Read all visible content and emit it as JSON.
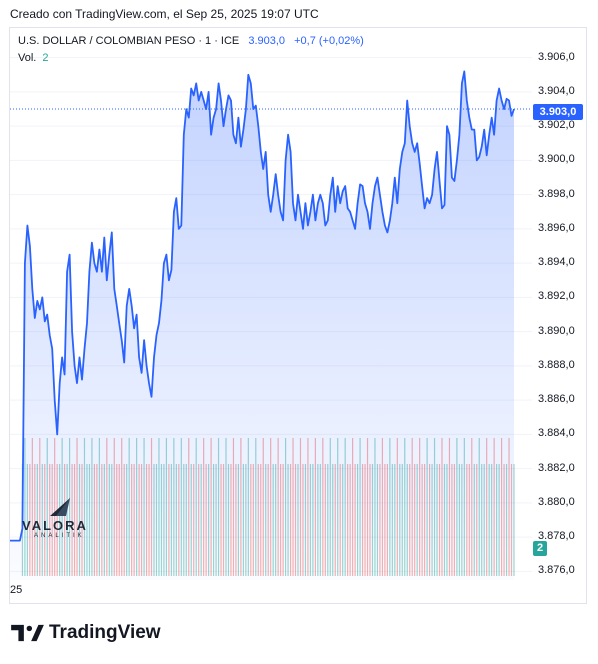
{
  "header": {
    "created_text": "Creado con TradingView.com, el Sep 25, 2025 19:07 UTC"
  },
  "legend": {
    "symbol": "U.S. DOLLAR / COLOMBIAN PESO · 1 · ICE",
    "last": "3.903,0",
    "change": "+0,7 (+0,02%)",
    "vol_label": "Vol.",
    "vol_value": "2"
  },
  "badges": {
    "price": "3.903,0",
    "volume": "2"
  },
  "watermark": {
    "line1": "VALORA",
    "line2": "ANALITIK"
  },
  "footer": {
    "brand": "TradingView"
  },
  "colors": {
    "line": "#2962ff",
    "area": "#2962ff",
    "vol_up": "#26a69a",
    "vol_down": "#ef5350",
    "grid": "#f0f3fa"
  },
  "chart_data": {
    "type": "area",
    "title": "U.S. DOLLAR / COLOMBIAN PESO · 1 · ICE",
    "ylim": [
      3875.5,
      3908.2
    ],
    "y_ticks": [
      "3.906,0",
      "3.904,0",
      "3.902,0",
      "3.900,0",
      "3.898,0",
      "3.896,0",
      "3.894,0",
      "3.892,0",
      "3.890,0",
      "3.888,0",
      "3.886,0",
      "3.884,0",
      "3.882,0",
      "3.880,0",
      "3.878,0",
      "3.876,0"
    ],
    "y_tick_values": [
      3906,
      3904,
      3902,
      3900,
      3898,
      3896,
      3894,
      3892,
      3890,
      3888,
      3886,
      3884,
      3882,
      3880,
      3878,
      3876
    ],
    "x_tick_labels": [
      "25"
    ],
    "last_price": 3903.0,
    "series": [
      {
        "values": [
          3877.8,
          3877.8,
          3877.8,
          3877.8,
          3877.8,
          3878.5,
          3894.0,
          3896.2,
          3895.0,
          3892.5,
          3890.8,
          3891.8,
          3891.3,
          3892.0,
          3890.6,
          3891.0,
          3889.8,
          3889.0,
          3886.0,
          3884.0,
          3887.0,
          3888.5,
          3887.5,
          3893.5,
          3894.5,
          3890.0,
          3888.0,
          3887.0,
          3888.5,
          3887.2,
          3889.0,
          3890.5,
          3893.5,
          3895.2,
          3894.0,
          3893.5,
          3894.8,
          3893.5,
          3895.5,
          3893.0,
          3894.5,
          3895.8,
          3892.5,
          3891.5,
          3890.5,
          3889.5,
          3888.2,
          3891.5,
          3892.5,
          3891.5,
          3890.2,
          3891.0,
          3888.5,
          3887.6,
          3889.5,
          3888.0,
          3887.0,
          3886.2,
          3888.5,
          3889.8,
          3890.5,
          3891.8,
          3894.0,
          3894.5,
          3893.0,
          3893.6,
          3897.0,
          3897.8,
          3896.0,
          3896.2,
          3901.5,
          3903.0,
          3902.5,
          3904.2,
          3903.8,
          3904.5,
          3903.5,
          3904.0,
          3903.5,
          3903.0,
          3904.0,
          3901.5,
          3902.5,
          3903.0,
          3904.5,
          3903.5,
          3902.0,
          3903.0,
          3903.8,
          3903.5,
          3901.5,
          3901.0,
          3902.5,
          3900.8,
          3901.8,
          3903.0,
          3905.0,
          3904.5,
          3903.0,
          3903.2,
          3902.0,
          3900.5,
          3899.5,
          3900.5,
          3898.0,
          3897.0,
          3898.0,
          3899.2,
          3898.0,
          3897.0,
          3896.5,
          3900.0,
          3901.5,
          3900.5,
          3897.5,
          3896.5,
          3898.0,
          3897.0,
          3896.0,
          3897.5,
          3896.2,
          3897.0,
          3898.0,
          3896.5,
          3897.5,
          3898.0,
          3897.5,
          3896.2,
          3896.5,
          3898.0,
          3899.0,
          3897.0,
          3898.5,
          3897.5,
          3898.2,
          3898.5,
          3897.2,
          3897.0,
          3896.5,
          3896.0,
          3897.5,
          3898.6,
          3898.5,
          3897.5,
          3897.0,
          3896.0,
          3897.5,
          3898.5,
          3899.0,
          3898.0,
          3897.0,
          3896.2,
          3895.8,
          3896.5,
          3897.5,
          3899.0,
          3897.5,
          3899.5,
          3900.5,
          3901.0,
          3903.5,
          3902.0,
          3901.0,
          3900.5,
          3901.0,
          3899.8,
          3898.5,
          3897.2,
          3897.8,
          3897.5,
          3898.0,
          3899.5,
          3900.5,
          3898.8,
          3897.2,
          3897.4,
          3902.0,
          3901.5,
          3899.0,
          3898.8,
          3900.0,
          3901.5,
          3904.5,
          3905.2,
          3903.5,
          3902.5,
          3901.8,
          3901.8,
          3900.0,
          3900.2,
          3900.8,
          3901.8,
          3900.3,
          3901.5,
          3902.5,
          3901.5,
          3903.5,
          3904.2,
          3903.5,
          3903.0,
          3903.6,
          3903.5,
          3902.6,
          3903.0
        ]
      }
    ]
  }
}
